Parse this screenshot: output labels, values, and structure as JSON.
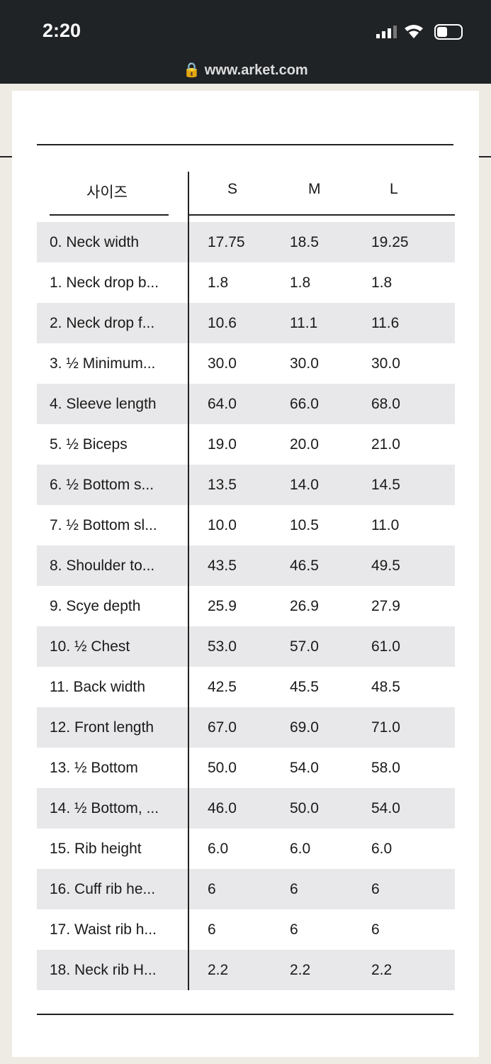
{
  "status_bar": {
    "time": "2:20"
  },
  "browser": {
    "url": "www.arket.com"
  },
  "table": {
    "header": [
      "사이즈",
      "S",
      "M",
      "L"
    ],
    "rows": [
      [
        "0. Neck width",
        "17.75",
        "18.5",
        "19.25"
      ],
      [
        "1. Neck drop b...",
        "1.8",
        "1.8",
        "1.8"
      ],
      [
        "2. Neck drop f...",
        "10.6",
        "11.1",
        "11.6"
      ],
      [
        "3. ½ Minimum...",
        "30.0",
        "30.0",
        "30.0"
      ],
      [
        "4. Sleeve length",
        "64.0",
        "66.0",
        "68.0"
      ],
      [
        "5. ½ Biceps",
        "19.0",
        "20.0",
        "21.0"
      ],
      [
        "6. ½ Bottom s...",
        "13.5",
        "14.0",
        "14.5"
      ],
      [
        "7. ½ Bottom sl...",
        "10.0",
        "10.5",
        "11.0"
      ],
      [
        "8. Shoulder to...",
        "43.5",
        "46.5",
        "49.5"
      ],
      [
        "9. Scye depth",
        "25.9",
        "26.9",
        "27.9"
      ],
      [
        "10. ½ Chest",
        "53.0",
        "57.0",
        "61.0"
      ],
      [
        "11. Back width",
        "42.5",
        "45.5",
        "48.5"
      ],
      [
        "12. Front length",
        "67.0",
        "69.0",
        "71.0"
      ],
      [
        "13. ½ Bottom",
        "50.0",
        "54.0",
        "58.0"
      ],
      [
        "14. ½ Bottom, ...",
        "46.0",
        "50.0",
        "54.0"
      ],
      [
        "15. Rib height",
        "6.0",
        "6.0",
        "6.0"
      ],
      [
        "16. Cuff rib he...",
        "6",
        "6",
        "6"
      ],
      [
        "17. Waist rib h...",
        "6",
        "6",
        "6"
      ],
      [
        "18. Neck rib H...",
        "2.2",
        "2.2",
        "2.2"
      ]
    ]
  }
}
